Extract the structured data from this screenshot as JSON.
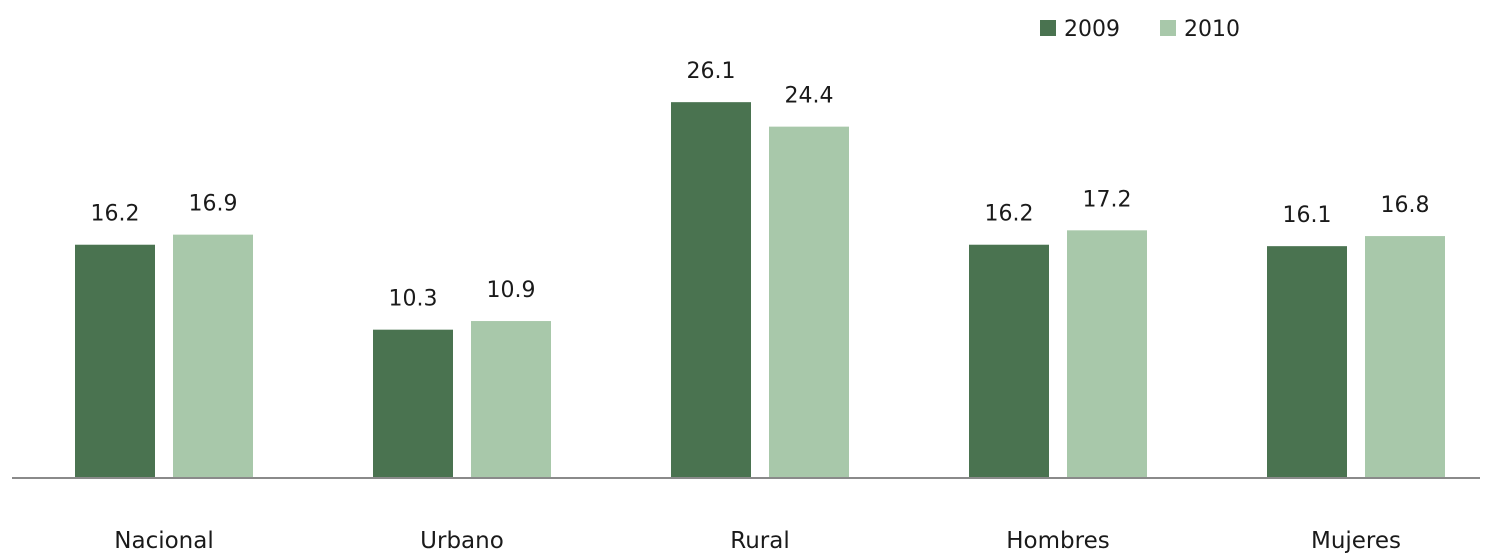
{
  "chart_data": {
    "type": "bar",
    "categories": [
      "Nacional",
      "Urbano",
      "Rural",
      "Hombres",
      "Mujeres"
    ],
    "series": [
      {
        "name": "2009",
        "color": "#4a7350",
        "values": [
          16.2,
          10.3,
          26.1,
          16.2,
          16.1
        ]
      },
      {
        "name": "2010",
        "color": "#a8c8aa",
        "values": [
          16.9,
          10.9,
          24.4,
          17.2,
          16.8
        ]
      }
    ],
    "ylim": [
      0,
      30
    ],
    "grid": false,
    "legend_position": "top-right",
    "data_labels": true
  }
}
